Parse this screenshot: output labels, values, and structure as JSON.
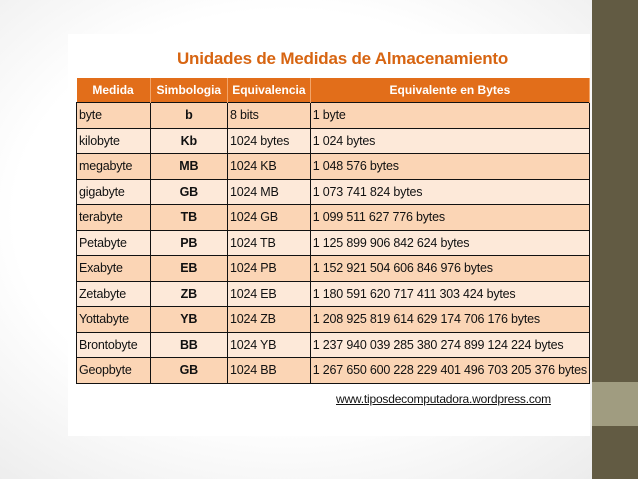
{
  "title": "Unidades de Medidas de Almacenamiento",
  "columns": [
    "Medida",
    "Simbologia",
    "Equivalencia",
    "Equivalente en Bytes"
  ],
  "rows": [
    [
      "byte",
      "b",
      "8 bits",
      "1 byte"
    ],
    [
      "kilobyte",
      "Kb",
      "1024 bytes",
      "1 024 bytes"
    ],
    [
      "megabyte",
      "MB",
      "1024 KB",
      "1 048 576 bytes"
    ],
    [
      "gigabyte",
      "GB",
      "1024 MB",
      "1 073 741 824 bytes"
    ],
    [
      "terabyte",
      "TB",
      "1024 GB",
      "1 099 511 627 776 bytes"
    ],
    [
      "Petabyte",
      "PB",
      "1024 TB",
      "1 125 899 906 842 624 bytes"
    ],
    [
      "Exabyte",
      "EB",
      "1024 PB",
      "1 152 921 504 606 846 976 bytes"
    ],
    [
      "Zetabyte",
      "ZB",
      "1024 EB",
      "1 180 591 620 717 411 303 424 bytes"
    ],
    [
      "Yottabyte",
      "YB",
      "1024 ZB",
      "1 208 925 819 614 629 174 706 176 bytes"
    ],
    [
      "Brontobyte",
      "BB",
      "1024 YB",
      "1 237 940 039 285 380 274 899 124 224 bytes"
    ],
    [
      "Geopbyte",
      "GB",
      "1024 BB",
      "1 267 650 600 228 229 401 496 703 205 376 bytes"
    ]
  ],
  "source_link": "www.tiposdecomputadora.wordpress.com",
  "colors": {
    "header_bg": "#e26e1a",
    "title": "#d76512",
    "row_dark": "#fbd5b5",
    "row_light": "#fde9d9",
    "side_band": "#625b43",
    "side_accent": "#a09c80"
  }
}
